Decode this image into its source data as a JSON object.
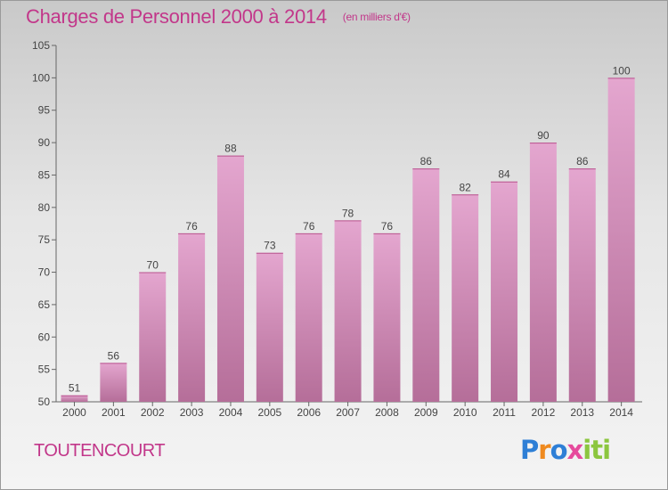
{
  "chart_data": {
    "type": "bar",
    "title": "Charges de Personnel 2000 à 2014",
    "subtitle": "(en milliers d'€)",
    "categories": [
      "2000",
      "2001",
      "2002",
      "2003",
      "2004",
      "2005",
      "2006",
      "2007",
      "2008",
      "2009",
      "2010",
      "2011",
      "2012",
      "2013",
      "2014"
    ],
    "values": [
      51,
      56,
      70,
      76,
      88,
      73,
      76,
      78,
      76,
      86,
      82,
      84,
      90,
      86,
      100
    ],
    "ylim": [
      50,
      105
    ],
    "yticks": [
      50,
      55,
      60,
      65,
      70,
      75,
      80,
      85,
      90,
      95,
      100,
      105
    ],
    "grid": false,
    "bar_color_top": "#e4a6cf",
    "bar_color_bottom": "#b56e99"
  },
  "footer": {
    "commune": "TOUTENCOURT",
    "logo": {
      "letters": [
        "P",
        "r",
        "o",
        "x",
        "i",
        "t",
        "i"
      ],
      "colors": [
        "#2e7fd6",
        "#ef8a1f",
        "#e64a9c",
        "#8cc63f"
      ]
    }
  }
}
